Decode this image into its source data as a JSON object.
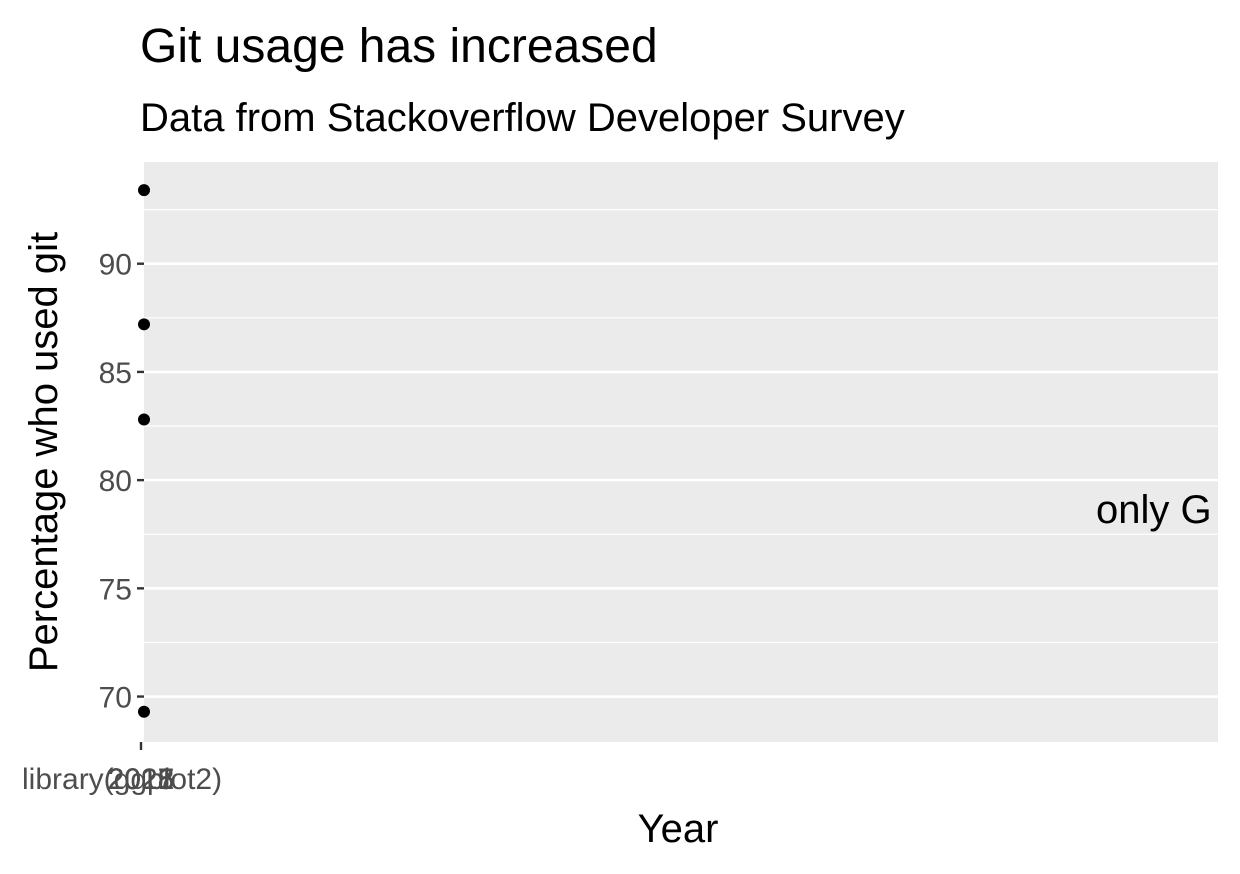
{
  "chart_data": {
    "type": "scatter",
    "title": "Git usage has increased",
    "subtitle": "Data from Stackoverflow Developer Survey",
    "xlabel": "Year",
    "ylabel": "Percentage who used git",
    "x_tick_labels": [
      "2015",
      "2017",
      "2018",
      "2021"
    ],
    "y_ticks": [
      70,
      75,
      80,
      85,
      90
    ],
    "ylim": [
      67.9,
      94.7
    ],
    "grid": true,
    "points": [
      {
        "x": "2015",
        "y": 69.3
      },
      {
        "x": "2017",
        "y": 82.8
      },
      {
        "x": "2018",
        "y": 87.2
      },
      {
        "x": "2021",
        "y": 93.4
      }
    ],
    "annotations": [
      "only G",
      "library(ggplot2)"
    ],
    "colors": {
      "panel_background": "#EBEBEB",
      "grid": "#FFFFFF",
      "point": "#000000",
      "tick_text": "#4D4D4D"
    }
  }
}
